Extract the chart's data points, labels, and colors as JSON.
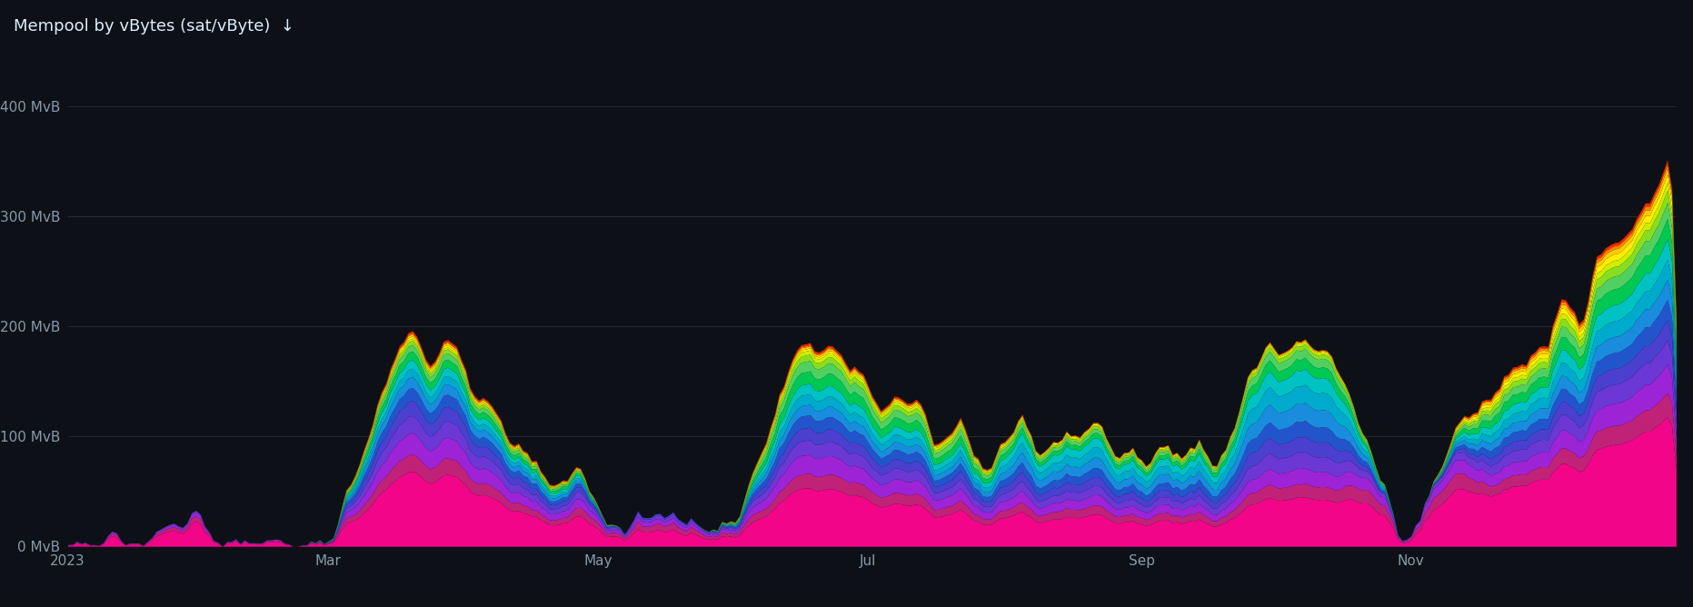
{
  "title": "Mempool by vBytes (sat/vByte)  ↓",
  "background_color": "#0d1117",
  "plot_bg_color": "#0d1117",
  "grid_color": "#2a2d3a",
  "text_color": "#8899aa",
  "title_color": "#ddeeff",
  "ytick_labels": [
    "0 MvB",
    "100 MvB",
    "200 MvB",
    "300 MvB",
    "400 MvB"
  ],
  "ytick_values": [
    0,
    100,
    200,
    300,
    400
  ],
  "xtick_labels": [
    "2023",
    "Mar",
    "May",
    "Jul",
    "Sep",
    "Nov"
  ],
  "xtick_positions": [
    0,
    59,
    120,
    181,
    243,
    304
  ],
  "ylim": [
    0,
    430
  ],
  "n_points": 365,
  "colors": [
    "#f20589",
    "#bf2277",
    "#9d23d6",
    "#6b38d6",
    "#4a3fcf",
    "#2255cc",
    "#1a8cdd",
    "#00aacc",
    "#00c2c2",
    "#00c853",
    "#50d060",
    "#88dd22",
    "#ccee00",
    "#ffee00",
    "#ffcc00",
    "#ff8800",
    "#ff4400",
    "#ff2200"
  ]
}
